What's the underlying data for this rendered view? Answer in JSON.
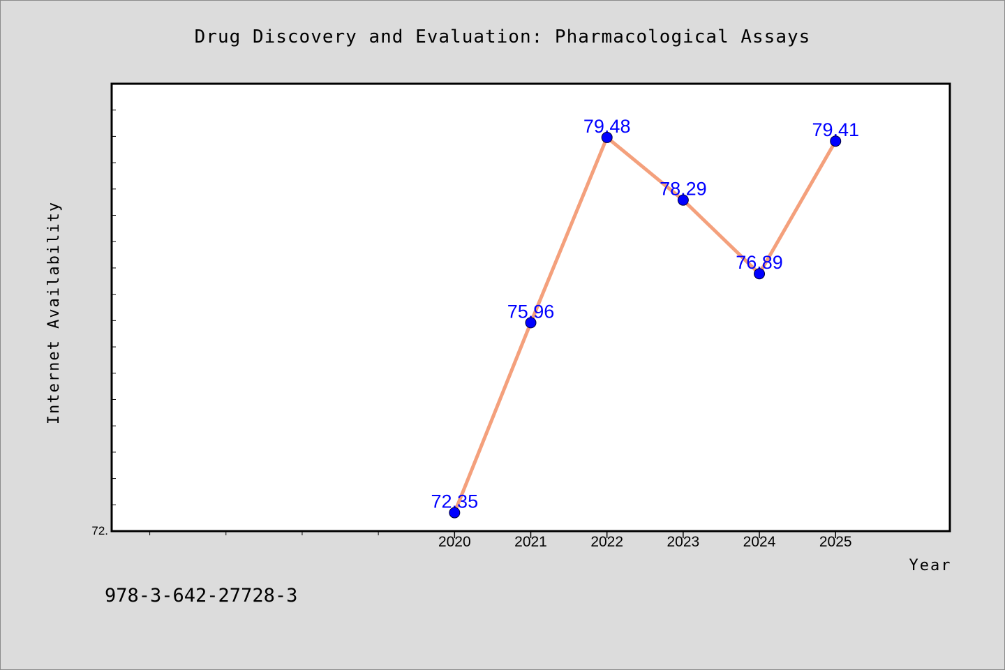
{
  "chart_data": {
    "type": "line",
    "title": "Drug Discovery and Evaluation: Pharmacological Assays",
    "xlabel": "Year",
    "ylabel": "Internet Availability",
    "x": [
      2020,
      2021,
      2022,
      2023,
      2024,
      2025
    ],
    "values": [
      72.35,
      75.96,
      79.48,
      78.29,
      76.89,
      79.41
    ],
    "data_labels": [
      "72.35",
      "75.96",
      "79.48",
      "78.29",
      "76.89",
      "79.41"
    ],
    "x_tick_labels": [
      "2020",
      "2021",
      "2022",
      "2023",
      "2024",
      "2025"
    ],
    "y_tick_labels": [
      "72."
    ],
    "xlim": [
      2015.5,
      2026.5
    ],
    "ylim": [
      72.0,
      80.5
    ],
    "grid": false,
    "legend": "none",
    "line_color": "#f4a07c",
    "marker_color": "#0000ff",
    "label_color": "#0000ff"
  },
  "footer": {
    "isbn": "978-3-642-27728-3"
  }
}
